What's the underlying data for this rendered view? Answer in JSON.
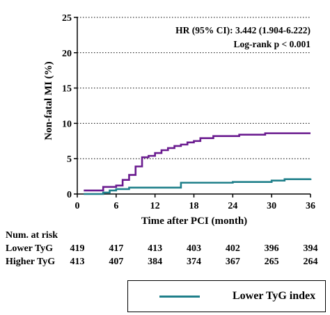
{
  "chart_data": {
    "type": "line",
    "step": true,
    "xlabel": "Time after PCI (month)",
    "ylabel": "Non-fatal MI (%)",
    "xlim": [
      0,
      36
    ],
    "ylim": [
      0,
      25
    ],
    "xticks": [
      0,
      6,
      12,
      18,
      24,
      30,
      36
    ],
    "yticks": [
      0,
      5,
      10,
      15,
      20,
      25
    ],
    "grid": "horizontal dotted",
    "annotations": [
      "HR (95% CI): 3.442 (1.904-6.222)",
      "Log-rank p < 0.001"
    ],
    "series": [
      {
        "name": "Lower TyG index",
        "color": "#1f7f8a",
        "x": [
          1,
          4,
          5,
          6,
          8,
          16,
          24,
          30,
          32,
          36
        ],
        "y": [
          0,
          0.2,
          0.5,
          0.7,
          0.9,
          1.6,
          1.7,
          1.9,
          2.1,
          2.2
        ]
      },
      {
        "name": "",
        "color": "#6a1b8f",
        "x": [
          1,
          4,
          6,
          7,
          8,
          9,
          10,
          11,
          12,
          13,
          14,
          15,
          16,
          17,
          18,
          19,
          21,
          25,
          29,
          32,
          36
        ],
        "y": [
          0.5,
          1.0,
          1.2,
          2.0,
          2.7,
          3.9,
          5.2,
          5.4,
          5.8,
          6.2,
          6.5,
          6.8,
          7.0,
          7.3,
          7.5,
          7.9,
          8.2,
          8.4,
          8.6,
          8.6,
          8.6
        ]
      }
    ]
  },
  "risk_table": {
    "title": "Num. at risk",
    "rows": [
      {
        "label": "Lower TyG",
        "values": [
          "419",
          "417",
          "413",
          "403",
          "402",
          "396",
          "394"
        ]
      },
      {
        "label": "Higher TyG",
        "values": [
          "413",
          "407",
          "384",
          "374",
          "367",
          "265",
          "264"
        ]
      }
    ]
  },
  "legend": {
    "entries": [
      "Lower TyG index"
    ]
  }
}
